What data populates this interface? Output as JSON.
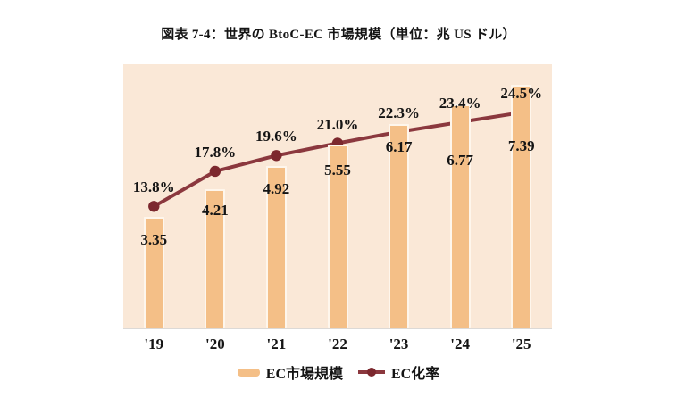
{
  "chart_data": {
    "type": "bar",
    "title": "図表 7-4：世界の BtoC-EC 市場規模（単位：兆 US ドル）",
    "categories": [
      "'19",
      "'20",
      "'21",
      "'22",
      "'23",
      "'24",
      "'25"
    ],
    "series": [
      {
        "name": "EC市場規模",
        "kind": "bar",
        "values": [
          3.35,
          4.21,
          4.92,
          5.55,
          6.17,
          6.77,
          7.39
        ],
        "labels": [
          "3.35",
          "4.21",
          "4.92",
          "5.55",
          "6.17",
          "6.77",
          "7.39"
        ],
        "axis_range": [
          0,
          8
        ],
        "color": "#F4BF87"
      },
      {
        "name": "EC化率",
        "kind": "line",
        "values": [
          13.8,
          17.8,
          19.6,
          21.0,
          22.3,
          23.4,
          24.5
        ],
        "labels": [
          "13.8%",
          "17.8%",
          "19.6%",
          "21.0%",
          "22.3%",
          "23.4%",
          "24.5%"
        ],
        "axis_range": [
          0,
          30
        ],
        "color": "#8B383E",
        "marker_color": "#7C282E"
      }
    ],
    "legend_position": "bottom",
    "grid": false,
    "plot_background": "#FAE8D7",
    "baseline_color": "#DCD9D6",
    "text_color": "#141414"
  }
}
